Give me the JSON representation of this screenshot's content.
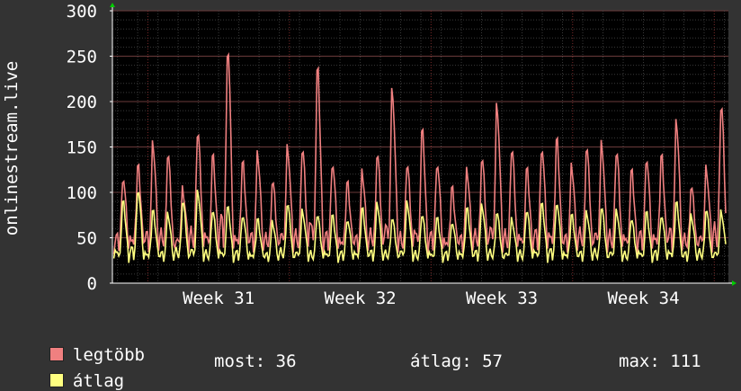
{
  "colors": {
    "background": "#333333",
    "plot": "#000000",
    "grid": "#4a4a4a",
    "axis": "#ffffff",
    "arrow": "#00cc00"
  },
  "chart_data": {
    "type": "line",
    "ylabel": "onlinestream.live",
    "ylim": [
      0,
      300
    ],
    "yticks": [
      0,
      50,
      100,
      150,
      200,
      250,
      300
    ],
    "xlim": [
      30.25,
      34.6
    ],
    "xticks": [
      {
        "label": "Week 31",
        "x": 31
      },
      {
        "label": "Week 32",
        "x": 32
      },
      {
        "label": "Week 33",
        "x": 33
      },
      {
        "label": "Week 34",
        "x": 34
      }
    ],
    "series": [
      {
        "name": "legtöbb",
        "color": "#f08080",
        "peaks": [
          125,
          138,
          162,
          150,
          110,
          178,
          148,
          278,
          142,
          150,
          118,
          160,
          158,
          252,
          142,
          118,
          128,
          150,
          228,
          140,
          178,
          142,
          112,
          130,
          145,
          210,
          158,
          132,
          160,
          170,
          135,
          158,
          165,
          155,
          130,
          148,
          150,
          188,
          112,
          135,
          210
        ]
      },
      {
        "name": "átlag",
        "color": "#ffff80",
        "peaks": [
          95,
          110,
          85,
          80,
          95,
          108,
          85,
          88,
          80,
          75,
          70,
          92,
          85,
          80,
          78,
          75,
          88,
          92,
          75,
          95,
          80,
          75,
          72,
          88,
          90,
          82,
          75,
          85,
          92,
          95,
          80,
          82,
          88,
          85,
          75,
          82,
          80,
          95,
          78,
          85,
          84
        ]
      }
    ]
  },
  "legend": [
    {
      "label": "legtöbb",
      "color": "#f08080"
    },
    {
      "label": "átlag",
      "color": "#ffff80"
    }
  ],
  "stats": {
    "most": "most: 36",
    "atlag": "átlag: 57",
    "max": "max: 111"
  }
}
